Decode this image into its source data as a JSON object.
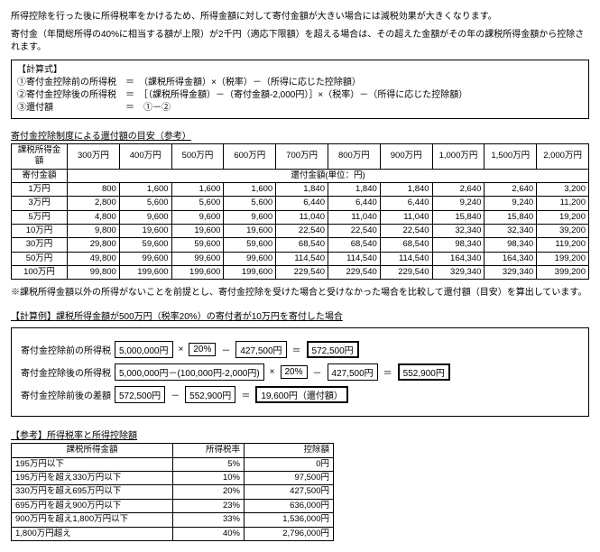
{
  "intro": {
    "p1": "所得控除を行った後に所得税率をかけるため、所得金額に対して寄付金額が大きい場合には減税効果が大きくなります。",
    "p2": "寄付金（年間総所得の40%に相当する額が上限）が2千円（適応下限額）を超える場合は、その超えた金額がその年の課税所得金額から控除されます。"
  },
  "formula": {
    "title": "【計算式】",
    "l1": "①寄付金控除前の所得税　＝　（課税所得金額）×（税率）－（所得に応じた控除額）",
    "l2": "②寄付金控除後の所得税　＝　［（課税所得金額）－（寄付金額-2,000円）］×（税率）－（所得に応じた控除額）",
    "l3": "③還付額　　　　　　　　＝　①－②"
  },
  "refund_table": {
    "title": "寄付金控除制度による還付額の目安（参考）",
    "income_header": "課税所得金額",
    "incomes": [
      "300万円",
      "400万円",
      "500万円",
      "600万円",
      "700万円",
      "800万円",
      "900万円",
      "1,000万円",
      "1,500万円",
      "2,000万円"
    ],
    "unit_header": "還付金額(単位：円)",
    "donation_header": "寄付金額",
    "rows": [
      {
        "label": "1万円",
        "v": [
          "800",
          "1,600",
          "1,600",
          "1,600",
          "1,840",
          "1,840",
          "1,840",
          "2,640",
          "2,640",
          "3,200"
        ]
      },
      {
        "label": "3万円",
        "v": [
          "2,800",
          "5,600",
          "5,600",
          "5,600",
          "6,440",
          "6,440",
          "6,440",
          "9,240",
          "9,240",
          "11,200"
        ]
      },
      {
        "label": "5万円",
        "v": [
          "4,800",
          "9,600",
          "9,600",
          "9,600",
          "11,040",
          "11,040",
          "11,040",
          "15,840",
          "15,840",
          "19,200"
        ]
      },
      {
        "label": "10万円",
        "v": [
          "9,800",
          "19,600",
          "19,600",
          "19,600",
          "22,540",
          "22,540",
          "22,540",
          "32,340",
          "32,340",
          "39,200"
        ]
      },
      {
        "label": "30万円",
        "v": [
          "29,800",
          "59,600",
          "59,600",
          "59,600",
          "68,540",
          "68,540",
          "68,540",
          "98,340",
          "98,340",
          "119,200"
        ]
      },
      {
        "label": "50万円",
        "v": [
          "49,800",
          "99,600",
          "99,600",
          "99,600",
          "114,540",
          "114,540",
          "114,540",
          "164,340",
          "164,340",
          "199,200"
        ]
      },
      {
        "label": "100万円",
        "v": [
          "99,800",
          "199,600",
          "199,600",
          "199,600",
          "229,540",
          "229,540",
          "229,540",
          "329,340",
          "329,340",
          "399,200"
        ]
      }
    ]
  },
  "note": "※課税所得金額以外の所得がないことを前提とし、寄付金控除を受けた場合と受けなかった場合を比較して還付額（目安）を算出しています。",
  "example": {
    "title": "【計算例】課税所得金額が500万円（税率20%）の寄付者が10万円を寄付した場合",
    "r1_label": "寄付金控除前の所得税",
    "r1_a": "5,000,000円",
    "r1_b": "20%",
    "r1_c": "427,500円",
    "r1_res": "572,500円",
    "r2_label": "寄付金控除後の所得税",
    "r2_a": "5,000,000円－(100,000円-2,000円)",
    "r2_b": "20%",
    "r2_c": "427,500円",
    "r2_res": "552,900円",
    "r3_label": "寄付金控除前後の差額",
    "r3_a": "572,500円",
    "r3_b": "552,900円",
    "r3_res": "19,600円（還付額）",
    "op_mul": "×",
    "op_sub": "－",
    "op_eq": "＝"
  },
  "rate_table": {
    "title": "【参考】所得税率と所得控除額",
    "h1": "課税所得金額",
    "h2": "所得税率",
    "h3": "控除額",
    "rows": [
      {
        "a": "195万円以下",
        "b": "5%",
        "c": "0円"
      },
      {
        "a": "195万円を超え330万円以下",
        "b": "10%",
        "c": "97,500円"
      },
      {
        "a": "330万円を超え695万円以下",
        "b": "20%",
        "c": "427,500円"
      },
      {
        "a": "695万円を超え900万円以下",
        "b": "23%",
        "c": "636,000円"
      },
      {
        "a": "900万円を超え1,800万円以下",
        "b": "33%",
        "c": "1,536,000円"
      },
      {
        "a": "1,800万円超え",
        "b": "40%",
        "c": "2,796,000円"
      }
    ]
  }
}
